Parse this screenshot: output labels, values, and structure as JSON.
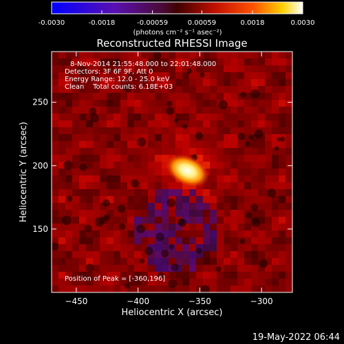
{
  "chart_data": {
    "type": "heatmap",
    "title": "Reconstructed RHESSI Image",
    "xlabel": "Heliocentric X (arcsec)",
    "ylabel": "Heliocentric Y (arcsec)",
    "xlim": [
      -470,
      -275
    ],
    "ylim": [
      100,
      290
    ],
    "x_ticks": [
      -450,
      -400,
      -350,
      -300
    ],
    "y_ticks": [
      150,
      200,
      250
    ],
    "peak": {
      "x": -360,
      "y": 196
    },
    "colorbar": {
      "ticks": [
        -0.003,
        -0.0018,
        -0.00059,
        0.00059,
        0.0018,
        0.003
      ],
      "tick_labels": [
        "-0.0030",
        "-0.0018",
        "-0.00059",
        "0.00059",
        "0.0018",
        "0.0030"
      ],
      "range": [
        -0.003,
        0.003
      ],
      "unit_label": "(photons cm⁻² s⁻¹ asec⁻²)"
    },
    "info_lines": [
      "8-Nov-2014 21:55:48.000 to 22:01:48.000",
      "Detectors: 3F 6F 9F, Att 0",
      "Energy Range: 12.0 - 25.0 keV",
      "Clean    Total counts: 6.18E+03"
    ],
    "peak_label": "Position of Peak = [-360,196]"
  },
  "footer": {
    "timestamp": "19-May-2022 06:44"
  }
}
